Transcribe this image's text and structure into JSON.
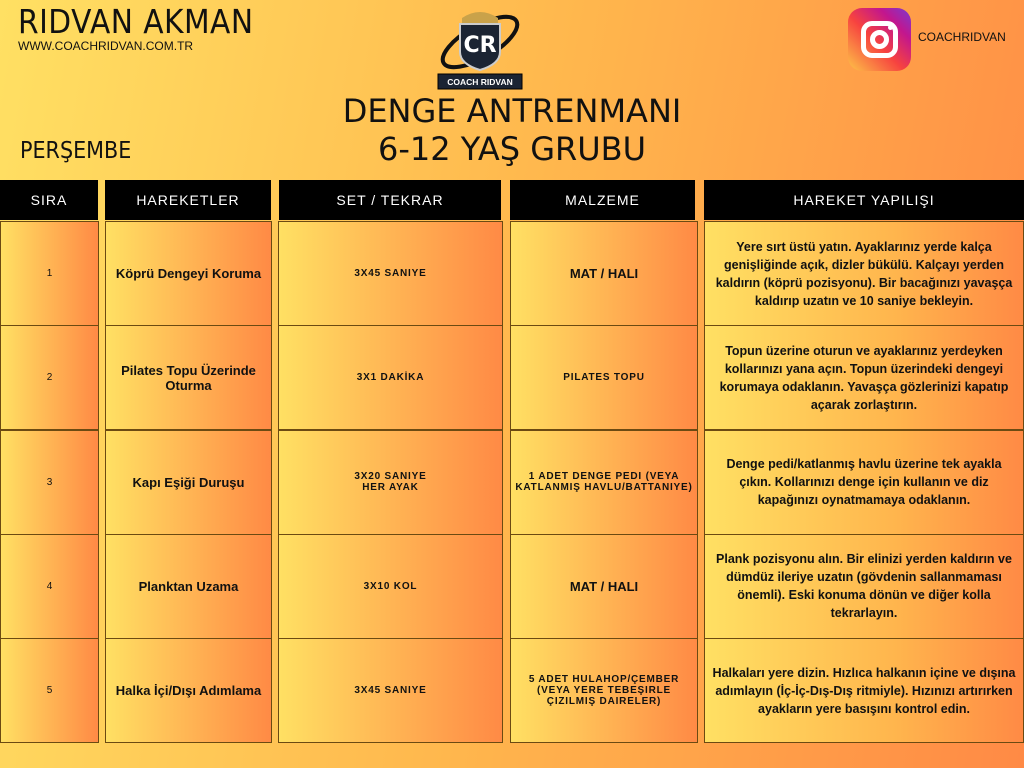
{
  "header": {
    "name": "RIDVAN AKMAN",
    "url": "WWW.COACHRIDVAN.COM.TR",
    "day": "PERŞEMBE",
    "title_line1": "DENGE ANTRENMANI",
    "title_line2": "6-12 YAŞ GRUBU",
    "logo_text": "COACH RIDVAN",
    "logo_initials": "CR",
    "instagram_handle": "COACHRIDVAN"
  },
  "colors": {
    "gradient_start": "#ffe063",
    "gradient_end": "#ff8a45",
    "header_bg": "#000000"
  },
  "table": {
    "columns": [
      "SIRA",
      "HAREKETLER",
      "SET / TEKRAR",
      "MALZEME",
      "HAREKET YAPILIŞI"
    ],
    "rows": [
      {
        "no": "1",
        "move": "Köprü Dengeyi Koruma",
        "sets": "3X45 SANIYE",
        "equip": "MAT / HALI",
        "desc": "Yere sırt üstü yatın. Ayaklarınız yerde kalça genişliğinde açık, dizler bükülü. Kalçayı yerden kaldırın (köprü pozisyonu). Bir bacağınızı yavaşça kaldırıp uzatın ve 10 saniye bekleyin."
      },
      {
        "no": "2",
        "move": "Pilates Topu Üzerinde Oturma",
        "sets": "3X1 DAKİKA",
        "equip": "PILATES TOPU",
        "desc": "Topun üzerine oturun ve ayaklarınız yerdeyken kollarınızı yana açın. Topun üzerindeki dengeyi korumaya odaklanın. Yavaşça gözlerinizi kapatıp açarak zorlaştırın."
      },
      {
        "no": "3",
        "move": "Kapı Eşiği Duruşu",
        "sets": "3X20 SANIYE\nHER AYAK",
        "equip": "1 ADET DENGE PEDI (VEYA KATLANMIŞ HAVLU/BATTANIYE)",
        "desc": "Denge pedi/katlanmış havlu üzerine tek ayakla çıkın. Kollarınızı denge için kullanın ve diz kapağınızı oynatmamaya odaklanın."
      },
      {
        "no": "4",
        "move": "Planktan Uzama",
        "sets": "3X10 KOL",
        "equip": "MAT / HALI",
        "desc": "Plank pozisyonu alın. Bir elinizi yerden kaldırın ve dümdüz ileriye uzatın (gövdenin sallanmaması önemli). Eski konuma dönün ve diğer kolla tekrarlayın."
      },
      {
        "no": "5",
        "move": "Halka İçi/Dışı Adımlama",
        "sets": "3X45 SANIYE",
        "equip": "5 ADET HULAHOP/ÇEMBER (VEYA YERE TEBEŞIRLE ÇIZILMIŞ DAIRELER)",
        "desc": "Halkaları yere dizin. Hızlıca halkanın içine ve dışına adımlayın (İç-İç-Dış-Dış ritmiyle). Hızınızı artırırken ayakların yere basışını kontrol edin."
      }
    ]
  }
}
